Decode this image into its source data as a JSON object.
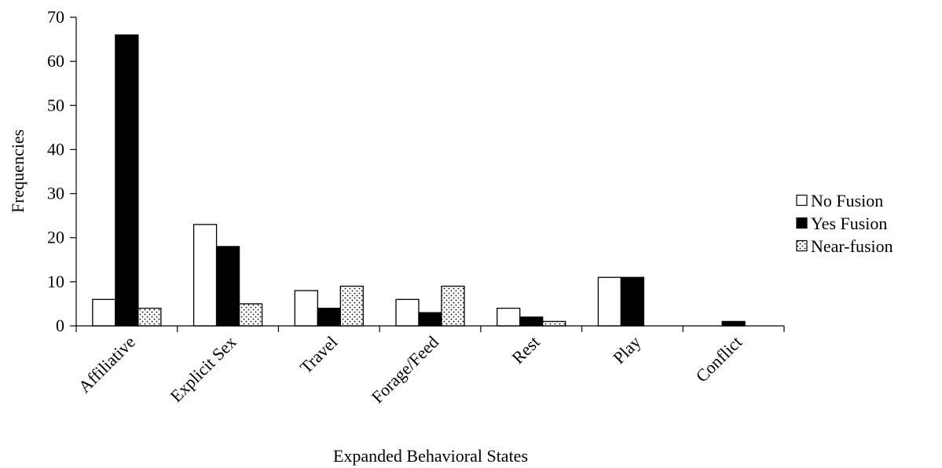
{
  "chart_data": {
    "type": "bar",
    "categories": [
      "Affiliative",
      "Explicit Sex",
      "Travel",
      "Forage/Feed",
      "Rest",
      "Play",
      "Conflict"
    ],
    "series": [
      {
        "name": "No Fusion",
        "values": [
          6,
          23,
          8,
          6,
          4,
          11,
          0
        ],
        "fill": "white"
      },
      {
        "name": "Yes Fusion",
        "values": [
          66,
          18,
          4,
          3,
          2,
          11,
          1
        ],
        "fill": "black"
      },
      {
        "name": "Near-fusion",
        "values": [
          4,
          5,
          9,
          9,
          1,
          0,
          0
        ],
        "fill": "dotted"
      }
    ],
    "title": "",
    "xlabel": "Expanded Behavioral States",
    "ylabel": "Frequencies",
    "ylim": [
      0,
      70
    ],
    "yticks": [
      0,
      10,
      20,
      30,
      40,
      50,
      60,
      70
    ],
    "grid": false,
    "legend": "right"
  }
}
